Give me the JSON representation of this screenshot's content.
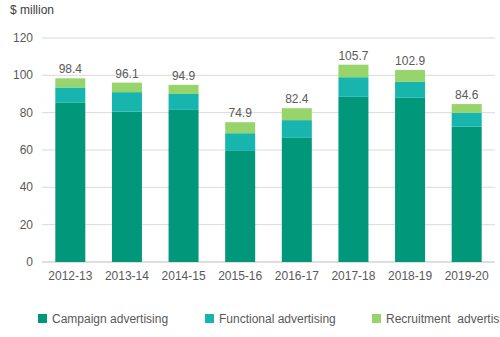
{
  "chart_data": {
    "type": "bar",
    "stacked": true,
    "y_label": "$ million",
    "categories": [
      "2012-13",
      "2013-14",
      "2014-15",
      "2015-16",
      "2016-17",
      "2017-18",
      "2018-19",
      "2019-20"
    ],
    "series": [
      {
        "name": "Campaign advertising",
        "color": "#00977b",
        "values": [
          85.5,
          80.5,
          81.5,
          59.5,
          66.5,
          88.5,
          88.0,
          72.5
        ]
      },
      {
        "name": "Functional advertising",
        "color": "#17b5ad",
        "values": [
          8.0,
          10.5,
          8.5,
          9.5,
          9.5,
          10.5,
          8.5,
          7.5
        ]
      },
      {
        "name": "Recruitment  advertising",
        "color": "#98d46c",
        "values": [
          4.9,
          5.1,
          4.9,
          5.9,
          6.4,
          6.7,
          6.4,
          4.6
        ]
      }
    ],
    "totals": [
      98.4,
      96.1,
      94.9,
      74.9,
      82.4,
      105.7,
      102.9,
      84.6
    ],
    "ylim": [
      0,
      120
    ],
    "yticks": [
      0,
      20,
      40,
      60,
      80,
      100,
      120
    ],
    "grid": true,
    "legend": "bottom"
  }
}
